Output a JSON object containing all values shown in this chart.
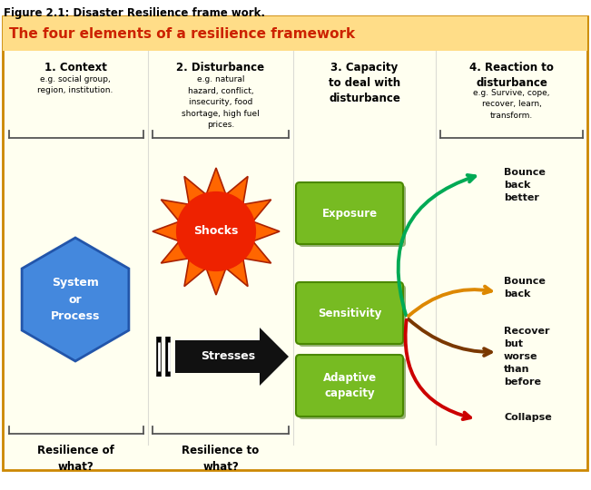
{
  "title": "Figure 2.1: Disaster Resilience frame work.",
  "header": "The four elements of a resilience framework",
  "header_color": "#CC2200",
  "header_bg": "#FFDD88",
  "bg_color": "#FFFFF0",
  "border_color": "#CC8800",
  "col1_title": "1. Context",
  "col1_body": "e.g. social group,\nregion, institution.",
  "col2_title": "2. Disturbance",
  "col2_body": "e.g. natural\nhazard, conflict,\ninsecurity, food\nshortage, high fuel\nprices.",
  "col3_title": "3. Capacity\nto deal with\ndisturbance",
  "col4_title": "4. Reaction to\ndisturbance",
  "col4_body": "e.g. Survive, cope,\nrecover, learn,\ntransform.",
  "hexagon_text": "System\nor\nProcess",
  "hexagon_color": "#4488DD",
  "shocks_text": "Shocks",
  "stresses_text": "Stresses",
  "box1_text": "Exposure",
  "box2_text": "Sensitivity",
  "box3_text": "Adaptive\ncapacity",
  "green_box_color": "#77BB22",
  "green_box_dark": "#4A8800",
  "reactions": [
    "Bounce\nback\nbetter",
    "Bounce\nback",
    "Recover\nbut\nworse\nthan\nbefore",
    "Collapse"
  ],
  "arrow_colors": [
    "#00AA55",
    "#DD8800",
    "#884400",
    "#CC0000"
  ],
  "bottom1": "Resilience of\nwhat?",
  "bottom2": "Resilience to\nwhat?"
}
